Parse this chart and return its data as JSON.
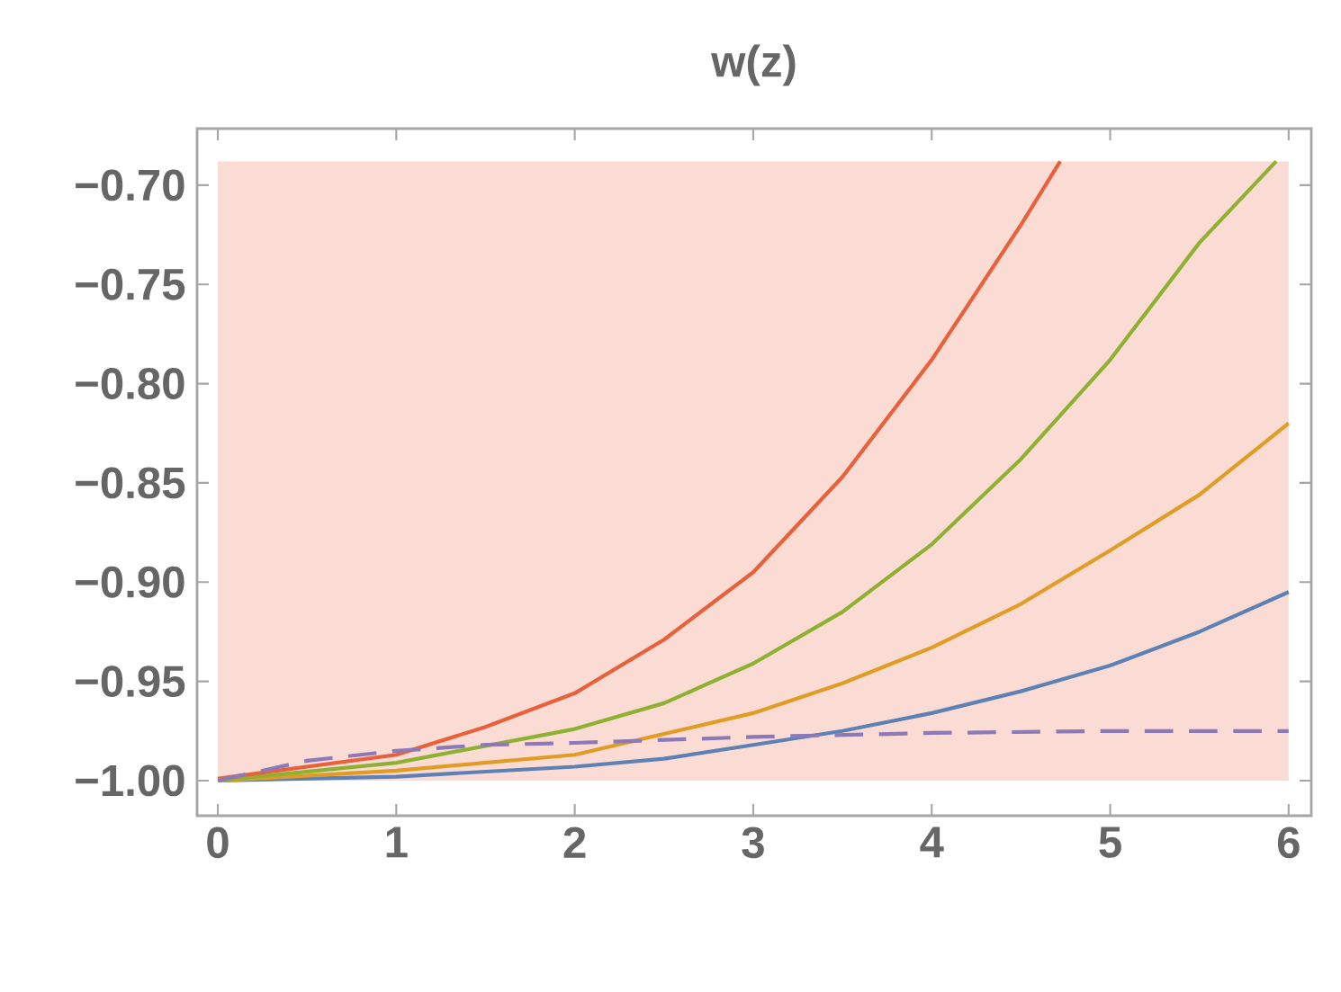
{
  "chart_data": {
    "type": "line",
    "title": "w(z)",
    "xlim": [
      -0.116,
      6.127
    ],
    "ylim": [
      -1.0177,
      -0.6715
    ],
    "xticks": [
      0,
      1,
      2,
      3,
      4,
      5,
      6
    ],
    "yticks": [
      {
        "value": -1.0,
        "label": "−1.00"
      },
      {
        "value": -0.95,
        "label": "−0.95"
      },
      {
        "value": -0.9,
        "label": "−0.90"
      },
      {
        "value": -0.85,
        "label": "−0.85"
      },
      {
        "value": -0.8,
        "label": "−0.80"
      },
      {
        "value": -0.75,
        "label": "−0.75"
      },
      {
        "value": -0.7,
        "label": "−0.70"
      }
    ],
    "marker": "none",
    "bands": [
      {
        "axis": "y",
        "from": -1.0,
        "to": -0.688,
        "color": "#fadcd4"
      }
    ],
    "series": [
      {
        "color": "#5e81b5",
        "line_style": "solid",
        "x": [
          0,
          1,
          2,
          2.5,
          3,
          3.5,
          4,
          4.5,
          5,
          5.5,
          6
        ],
        "values": [
          -1.0,
          -0.998,
          -0.993,
          -0.989,
          -0.982,
          -0.975,
          -0.966,
          -0.955,
          -0.942,
          -0.925,
          -0.905
        ]
      },
      {
        "color": "#e19c24",
        "line_style": "solid",
        "x": [
          0,
          1,
          2,
          3,
          3.5,
          4,
          4.5,
          5,
          5.5,
          6
        ],
        "values": [
          -1.0,
          -0.995,
          -0.987,
          -0.966,
          -0.951,
          -0.933,
          -0.911,
          -0.884,
          -0.856,
          -0.82
        ]
      },
      {
        "color": "#8fb131",
        "line_style": "solid",
        "x": [
          0,
          1,
          2,
          2.5,
          3,
          3.5,
          4,
          4.5,
          5,
          5.5,
          5.93
        ],
        "values": [
          -1.0,
          -0.991,
          -0.974,
          -0.961,
          -0.941,
          -0.915,
          -0.881,
          -0.838,
          -0.788,
          -0.729,
          -0.688
        ]
      },
      {
        "color": "#e8613a",
        "line_style": "solid",
        "x": [
          0,
          1,
          1.5,
          2,
          2.5,
          3,
          3.5,
          4,
          4.5,
          4.72
        ],
        "values": [
          -0.999,
          -0.987,
          -0.973,
          -0.956,
          -0.929,
          -0.895,
          -0.847,
          -0.788,
          -0.72,
          -0.688
        ]
      },
      {
        "color": "#8e79b8",
        "line_style": "dashed",
        "x": [
          0,
          0.5,
          1,
          1.5,
          2,
          3,
          4,
          5,
          6
        ],
        "values": [
          -1.0,
          -0.99,
          -0.985,
          -0.982,
          -0.981,
          -0.978,
          -0.976,
          -0.975,
          -0.975
        ]
      }
    ]
  }
}
